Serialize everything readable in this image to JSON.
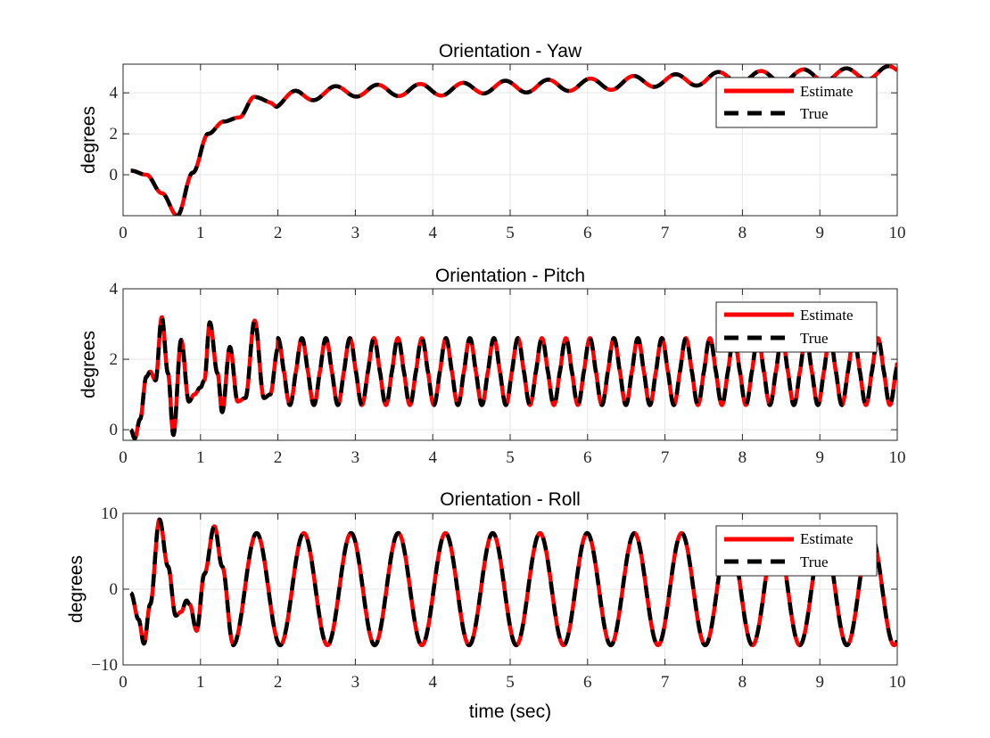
{
  "chart_data": [
    {
      "type": "line",
      "title": "Orientation - Yaw",
      "xlabel": "",
      "ylabel": "degrees",
      "xlim": [
        0,
        10
      ],
      "ylim": [
        -2,
        5.4
      ],
      "xticks": [
        0,
        1,
        2,
        3,
        4,
        5,
        6,
        7,
        8,
        9,
        10
      ],
      "yticks": [
        0,
        2,
        4
      ],
      "grid": true,
      "legend_location": "top-right",
      "x_start": 0.1,
      "x_end": 10,
      "model": {
        "kind": "yaw",
        "knots": [
          [
            0.1,
            0.2
          ],
          [
            0.3,
            0.0
          ],
          [
            0.5,
            -0.9
          ],
          [
            0.7,
            -2.0
          ],
          [
            0.9,
            0.1
          ],
          [
            1.1,
            2.0
          ],
          [
            1.3,
            2.6
          ],
          [
            1.5,
            2.8
          ],
          [
            1.7,
            3.7
          ],
          [
            1.9,
            3.8
          ],
          [
            2.0,
            3.5
          ],
          [
            2.3,
            3.9
          ],
          [
            3.0,
            4.1
          ],
          [
            4.0,
            4.15
          ],
          [
            5.0,
            4.3
          ],
          [
            6.0,
            4.4
          ],
          [
            7.0,
            4.6
          ],
          [
            8.0,
            4.75
          ],
          [
            9.0,
            4.85
          ],
          [
            10.0,
            5.0
          ]
        ],
        "osc_start": 1.5,
        "osc_amp": 0.28,
        "osc_amp_growth": 0.012,
        "osc_period": 0.55
      },
      "series": [
        {
          "name": "Estimate",
          "color": "#ff0000",
          "style": "solid"
        },
        {
          "name": "True",
          "color": "#000000",
          "style": "dashed"
        }
      ]
    },
    {
      "type": "line",
      "title": "Orientation - Pitch",
      "xlabel": "",
      "ylabel": "degrees",
      "xlim": [
        0,
        10
      ],
      "ylim": [
        -0.3,
        4
      ],
      "xticks": [
        0,
        1,
        2,
        3,
        4,
        5,
        6,
        7,
        8,
        9,
        10
      ],
      "yticks": [
        0,
        2,
        4
      ],
      "grid": true,
      "legend_location": "top-right",
      "x_start": 0.1,
      "x_end": 10,
      "model": {
        "kind": "pitch",
        "points": [
          [
            0.1,
            0.0
          ],
          [
            0.15,
            -0.25
          ],
          [
            0.22,
            0.3
          ],
          [
            0.3,
            1.5
          ],
          [
            0.35,
            1.65
          ],
          [
            0.42,
            1.4
          ],
          [
            0.5,
            3.2
          ],
          [
            0.58,
            1.6
          ],
          [
            0.65,
            -0.15
          ],
          [
            0.75,
            2.55
          ],
          [
            0.85,
            0.8
          ],
          [
            0.92,
            1.0
          ],
          [
            1.0,
            1.2
          ],
          [
            1.05,
            1.4
          ],
          [
            1.12,
            3.05
          ],
          [
            1.22,
            1.6
          ],
          [
            1.28,
            0.5
          ],
          [
            1.38,
            2.35
          ],
          [
            1.48,
            0.8
          ],
          [
            1.58,
            0.9
          ],
          [
            1.7,
            3.1
          ],
          [
            1.82,
            0.9
          ],
          [
            1.9,
            1.0
          ],
          [
            2.0,
            2.3
          ]
        ],
        "wave_start": 2.0,
        "wave_mid": 1.65,
        "wave_amp": 0.95,
        "wave_period": 0.31,
        "wave_phase": 1.5708
      },
      "series": [
        {
          "name": "Estimate",
          "color": "#ff0000",
          "style": "solid"
        },
        {
          "name": "True",
          "color": "#000000",
          "style": "dashed"
        }
      ]
    },
    {
      "type": "line",
      "title": "Orientation - Roll",
      "xlabel": "time (sec)",
      "ylabel": "degrees",
      "xlim": [
        0,
        10
      ],
      "ylim": [
        -10,
        10
      ],
      "xticks": [
        0,
        1,
        2,
        3,
        4,
        5,
        6,
        7,
        8,
        9,
        10
      ],
      "yticks": [
        -10,
        0,
        10
      ],
      "grid": true,
      "legend_location": "top-right",
      "x_start": 0.1,
      "x_end": 10,
      "model": {
        "kind": "roll",
        "points": [
          [
            0.1,
            -0.5
          ],
          [
            0.2,
            -4.0
          ],
          [
            0.27,
            -7.2
          ],
          [
            0.35,
            -2.0
          ],
          [
            0.47,
            9.2
          ],
          [
            0.58,
            3.0
          ],
          [
            0.68,
            -3.5
          ],
          [
            0.75,
            -3.0
          ],
          [
            0.82,
            -1.5
          ],
          [
            0.86,
            -2.0
          ],
          [
            0.95,
            -5.5
          ],
          [
            1.05,
            2.0
          ],
          [
            1.18,
            8.3
          ],
          [
            1.28,
            3.0
          ],
          [
            1.42,
            -7.2
          ]
        ],
        "wave_start": 1.42,
        "wave_amp": 7.4,
        "wave_period": 0.61,
        "wave_phase": -1.5708
      },
      "series": [
        {
          "name": "Estimate",
          "color": "#ff0000",
          "style": "solid"
        },
        {
          "name": "True",
          "color": "#000000",
          "style": "dashed"
        }
      ]
    }
  ]
}
